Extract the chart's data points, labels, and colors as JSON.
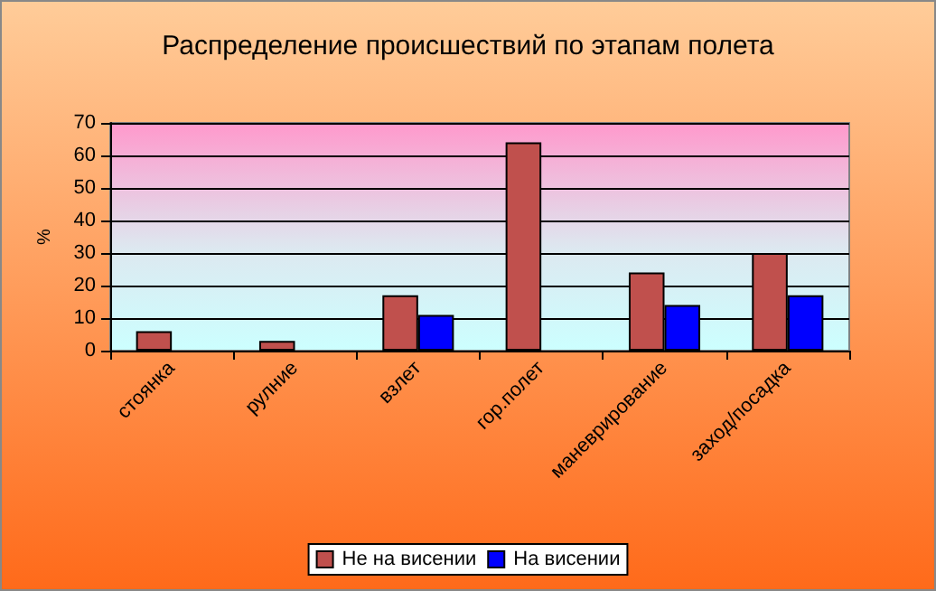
{
  "chart_data": {
    "type": "bar",
    "title": "Распределение происшествий по этапам полета",
    "ylabel": "%",
    "categories": [
      "стоянка",
      "рулние",
      "взлет",
      "гор.полет",
      "маневрирование",
      "заход/посадка"
    ],
    "series": [
      {
        "name": "Не на висении",
        "color": "#c0504d",
        "values": [
          6,
          3,
          17,
          64,
          24,
          30
        ]
      },
      {
        "name": "На висении",
        "color": "#0000ff",
        "values": [
          null,
          null,
          11,
          null,
          14,
          17
        ]
      }
    ],
    "ylim": [
      0,
      70
    ],
    "yticks": [
      0,
      10,
      20,
      30,
      40,
      50,
      60,
      70
    ],
    "grid": "y",
    "legend": "bottom"
  }
}
